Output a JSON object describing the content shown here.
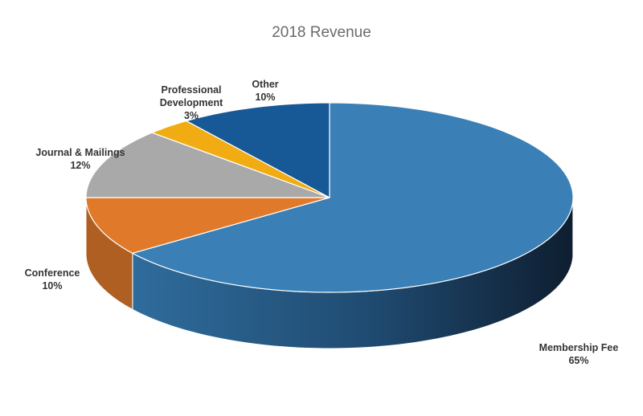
{
  "chart_data": {
    "type": "pie",
    "title": "2018 Revenue",
    "slices": [
      {
        "label": "Membership Fee",
        "value": 65,
        "value_label": "65%",
        "color": "#3a7fb5"
      },
      {
        "label": "Conference",
        "value": 10,
        "value_label": "10%",
        "color": "#e07a2a"
      },
      {
        "label": "Journal & Mailings",
        "value": 12,
        "value_label": "12%",
        "color": "#a9a9a9"
      },
      {
        "label": "Professional Development",
        "label_lines": [
          "Professional",
          "Development"
        ],
        "value": 3,
        "value_label": "3%",
        "color": "#f0ac12"
      },
      {
        "label": "Other",
        "value": 10,
        "value_label": "10%",
        "color": "#175896"
      }
    ],
    "style": "3d-pie",
    "legend": "none"
  }
}
